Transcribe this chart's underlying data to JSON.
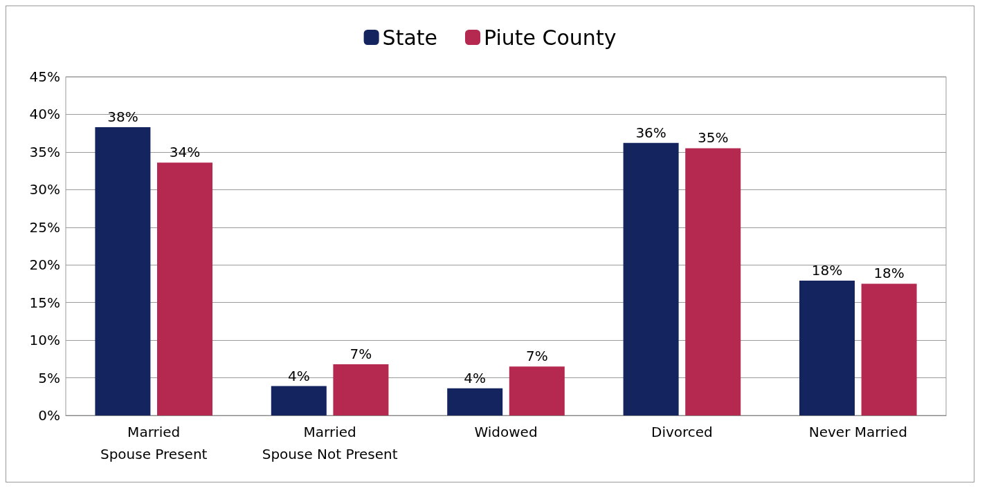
{
  "chart_data": {
    "type": "bar",
    "categories": [
      "Married\nSpouse Present",
      "Married\nSpouse Not Present",
      "Widowed",
      "Divorced",
      "Never Married"
    ],
    "series": [
      {
        "name": "State",
        "color": "#14245e",
        "values": [
          38.3,
          3.9,
          3.6,
          36.2,
          17.9
        ],
        "value_labels": [
          "38%",
          "4%",
          "4%",
          "36%",
          "18%"
        ]
      },
      {
        "name": "Piute County",
        "color": "#b5284f",
        "values": [
          33.6,
          6.8,
          6.5,
          35.5,
          17.5
        ],
        "value_labels": [
          "34%",
          "7%",
          "7%",
          "35%",
          "18%"
        ]
      }
    ],
    "ylim": [
      0,
      45
    ],
    "yticks": [
      {
        "value": 0,
        "label": "0%"
      },
      {
        "value": 5,
        "label": "5%"
      },
      {
        "value": 10,
        "label": "10%"
      },
      {
        "value": 15,
        "label": "15%"
      },
      {
        "value": 20,
        "label": "20%"
      },
      {
        "value": 25,
        "label": "25%"
      },
      {
        "value": 30,
        "label": "30%"
      },
      {
        "value": 35,
        "label": "35%"
      },
      {
        "value": 40,
        "label": "40%"
      },
      {
        "value": 45,
        "label": "45%"
      }
    ],
    "grid": "y",
    "legend": "top"
  }
}
